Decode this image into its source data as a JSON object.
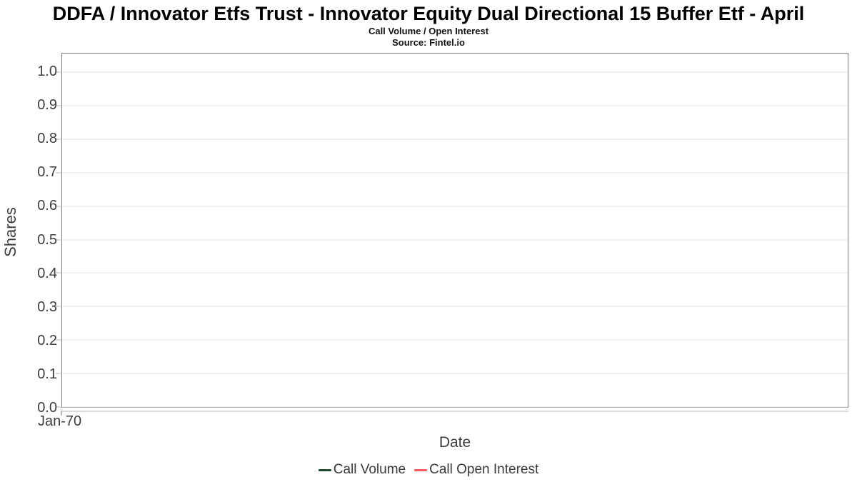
{
  "chart": {
    "title": "DDFA / Innovator Etfs Trust - Innovator Equity Dual Directional 15 Buffer Etf - April",
    "subtitle": "Call Volume / Open Interest",
    "source": "Source: Fintel.io",
    "y_axis": {
      "title": "Shares",
      "ticks": [
        "1.0",
        "0.9",
        "0.8",
        "0.7",
        "0.6",
        "0.5",
        "0.4",
        "0.3",
        "0.2",
        "0.1",
        "0.0"
      ]
    },
    "x_axis": {
      "title": "Date",
      "ticks": [
        "Jan-70"
      ]
    },
    "legend": [
      {
        "label": "Call Volume",
        "color": "#204a32"
      },
      {
        "label": "Call Open Interest",
        "color": "#f45b5b"
      }
    ],
    "colors": {
      "plot_border": "#7d7d7d",
      "gridline": "#e6e6e6",
      "tick_text": "#3d3d3d",
      "title_text": "#000000"
    }
  },
  "chart_data": {
    "type": "line",
    "title": "DDFA / Innovator Etfs Trust - Innovator Equity Dual Directional 15 Buffer Etf - April",
    "subtitle": "Call Volume / Open Interest",
    "source": "Source: Fintel.io",
    "xlabel": "Date",
    "ylabel": "Shares",
    "x": [
      "Jan-70"
    ],
    "x_tick_labels": [
      "Jan-70"
    ],
    "y_tick_labels": [
      1.0,
      0.9,
      0.8,
      0.7,
      0.6,
      0.5,
      0.4,
      0.3,
      0.2,
      0.1,
      0.0
    ],
    "ylim": [
      0.0,
      1.05
    ],
    "grid": true,
    "legend_position": "bottom",
    "series": [
      {
        "name": "Call Volume",
        "color": "#204a32",
        "x": [],
        "values": []
      },
      {
        "name": "Call Open Interest",
        "color": "#f45b5b",
        "x": [],
        "values": []
      }
    ]
  }
}
